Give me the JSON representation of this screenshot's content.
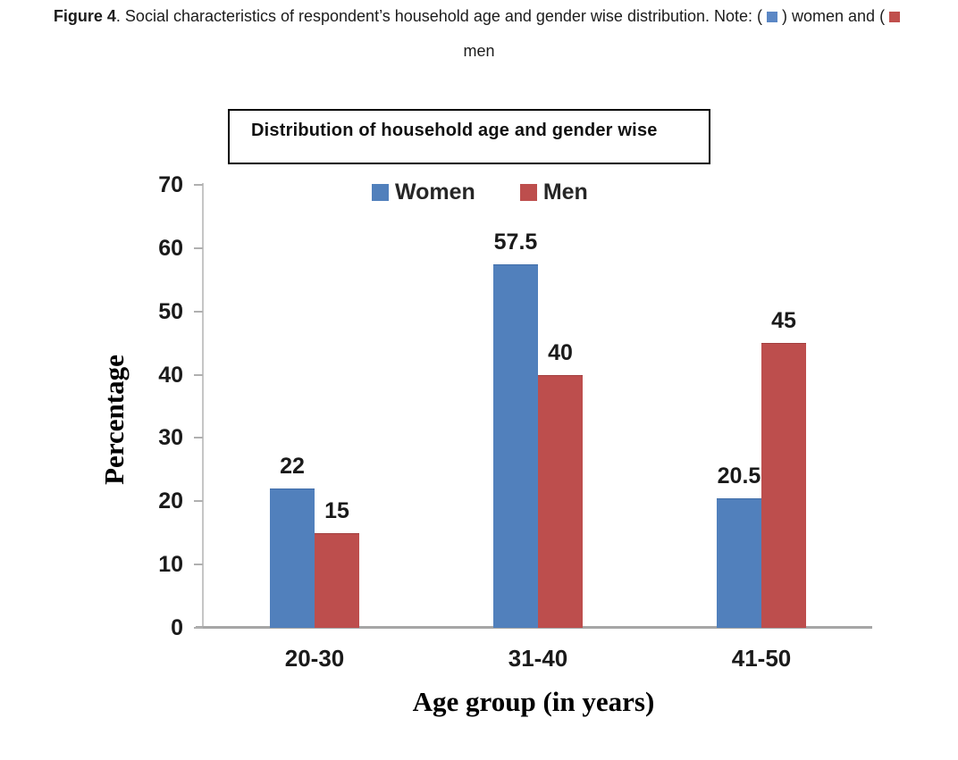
{
  "caption": {
    "figure_label": "Figure 4",
    "segment_after_label": ". Social characteristics of respondent’s household age and gender wise distribution. Note: (",
    "segment_between_swatches": ") women and (",
    "line2": "men",
    "women_swatch_color": "#5b87c5",
    "men_swatch_color": "#c0504d"
  },
  "title_box": {
    "text": "Distribution of household age and gender wise"
  },
  "chart_data": {
    "type": "bar",
    "title": "Distribution of household age and gender wise",
    "categories": [
      "20-30",
      "31-40",
      "41-50"
    ],
    "series": [
      {
        "name": "Women",
        "color": "#5180bc",
        "border_color": "#3f6ca8",
        "values": [
          22,
          57.5,
          20.5
        ],
        "labels": [
          "22",
          "57.5",
          "20.5"
        ]
      },
      {
        "name": "Men",
        "color": "#bd4e4d",
        "border_color": "#a23e3e",
        "values": [
          15,
          40,
          45
        ],
        "labels": [
          "15",
          "40",
          "45"
        ]
      }
    ],
    "xlabel": "Age group (in years)",
    "ylabel": "Percentage",
    "ylim": [
      0,
      70
    ],
    "yticks": [
      0,
      10,
      20,
      30,
      40,
      50,
      60,
      70
    ],
    "legend_entries": [
      "Women",
      "Men"
    ],
    "legend_position": "top-center",
    "grid": false,
    "axis_color": "#a6a6a6",
    "tick_color": "#b0b0b0",
    "label_color": "#1a1a1a"
  }
}
